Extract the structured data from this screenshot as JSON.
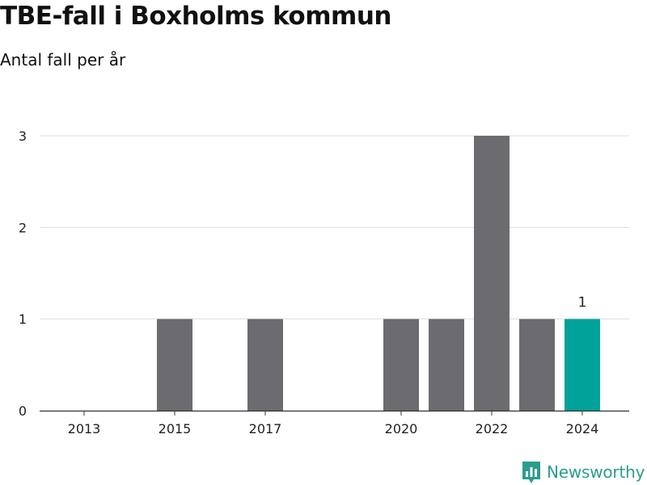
{
  "header": {
    "title": "TBE-fall i Boxholms kommun",
    "subtitle": "Antal fall per år"
  },
  "brand": {
    "name": "Newsworthy",
    "icon": "newsworthy-logo-icon",
    "color": "#2a9d8f"
  },
  "colors": {
    "bar": "#6c6b70",
    "highlight": "#00a29a",
    "grid": "#dddddd"
  },
  "chart_data": {
    "type": "bar",
    "title": "TBE-fall i Boxholms kommun",
    "subtitle": "Antal fall per år",
    "xlabel": "",
    "ylabel": "",
    "x": [
      2013,
      2014,
      2015,
      2016,
      2017,
      2018,
      2019,
      2020,
      2021,
      2022,
      2023,
      2024
    ],
    "values": [
      0,
      0,
      1,
      0,
      1,
      0,
      0,
      1,
      1,
      3,
      1,
      1
    ],
    "highlight_index": 11,
    "highlight_label": "1",
    "x_tick_labels": [
      "2013",
      "2015",
      "2017",
      "2020",
      "2022",
      "2024"
    ],
    "y_ticks": [
      "0",
      "1",
      "2",
      "3"
    ],
    "ylim": [
      0,
      3
    ],
    "grid": true,
    "legend": "none"
  }
}
